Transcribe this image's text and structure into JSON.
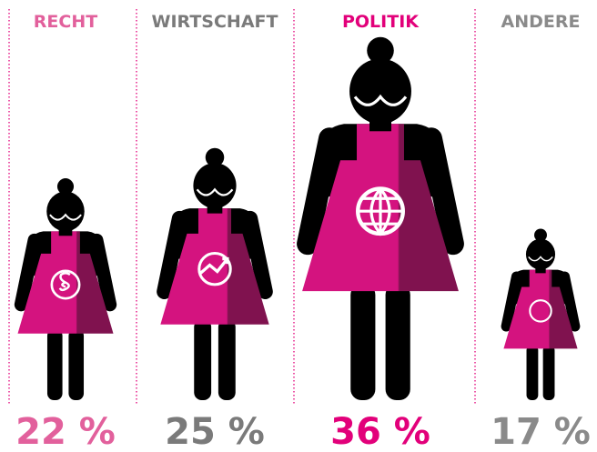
{
  "chart_data": {
    "type": "pictogram",
    "categories": [
      "RECHT",
      "WIRTSCHAFT",
      "POLITIK",
      "ANDERE"
    ],
    "values": [
      22,
      25,
      36,
      17
    ],
    "value_labels": [
      "22 %",
      "25 %",
      "36 %",
      "17 %"
    ],
    "colors": [
      "#e2609c",
      "#7a7a7a",
      "#e2007a",
      "#8a8a8a"
    ],
    "color": "#d4137f"
  }
}
